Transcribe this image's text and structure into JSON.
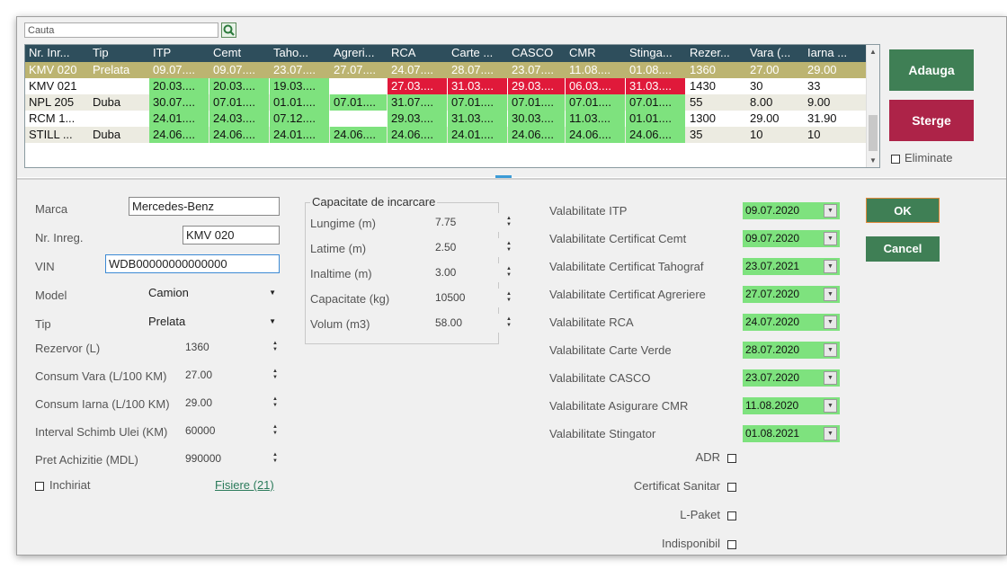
{
  "search": {
    "placeholder": "Cauta",
    "icon": "search-icon"
  },
  "grid": {
    "columns": [
      "Nr. Inr...",
      "Tip",
      "ITP",
      "Cemt",
      "Taho...",
      "Agreri...",
      "RCA",
      "Carte ...",
      "CASCO",
      "CMR",
      "Stinga...",
      "Rezer...",
      "Vara (...",
      "Iarna ..."
    ],
    "rows": [
      [
        "KMV 020",
        "Prelata",
        "09.07....",
        "09.07....",
        "23.07....",
        "27.07....",
        "24.07....",
        "28.07....",
        "23.07....",
        "11.08....",
        "01.08....",
        "1360",
        "27.00",
        "29.00"
      ],
      [
        "KMV 021",
        "",
        "20.03....",
        "20.03....",
        "19.03....",
        "",
        "27.03....",
        "31.03....",
        "29.03....",
        "06.03....",
        "31.03....",
        "1430",
        "30",
        "33"
      ],
      [
        "NPL 205",
        "Duba",
        "30.07....",
        "07.01....",
        "01.01....",
        "07.01....",
        "31.07....",
        "07.01....",
        "07.01....",
        "07.01....",
        "07.01....",
        "55",
        "8.00",
        "9.00"
      ],
      [
        "RCM 1...",
        "",
        "24.01....",
        "24.03....",
        "07.12....",
        "",
        "29.03....",
        "31.03....",
        "30.03....",
        "11.03....",
        "01.01....",
        "1300",
        "29.00",
        "31.90"
      ],
      [
        "STILL ...",
        "Duba",
        "24.06....",
        "24.06....",
        "24.01....",
        "24.06....",
        "24.06....",
        "24.01....",
        "24.06....",
        "24.06....",
        "24.06....",
        "35",
        "10",
        "10"
      ]
    ]
  },
  "actions": {
    "add_label": "Adauga",
    "delete_label": "Sterge",
    "eliminate_label": "Eliminate"
  },
  "form": {
    "marca_label": "Marca",
    "marca_value": "Mercedes-Benz",
    "nr_label": "Nr. Inreg.",
    "nr_value": "KMV 020",
    "vin_label": "VIN",
    "vin_value": "WDB00000000000000",
    "model_label": "Model",
    "model_value": "Camion",
    "tip_label": "Tip",
    "tip_value": "Prelata",
    "rezervor_label": "Rezervor (L)",
    "rezervor_value": "1360",
    "vara_label": "Consum Vara (L/100 KM)",
    "vara_value": "27.00",
    "iarna_label": "Consum Iarna (L/100 KM)",
    "iarna_value": "29.00",
    "ulei_label": "Interval Schimb Ulei (KM)",
    "ulei_value": "60000",
    "pret_label": "Pret Achizitie (MDL)",
    "pret_value": "990000",
    "inchiriat_label": "Inchiriat",
    "fisiere_link": "Fisiere (21)"
  },
  "capacity": {
    "title": "Capacitate de incarcare",
    "lungime_label": "Lungime (m)",
    "lungime_value": "7.75",
    "latime_label": "Latime (m)",
    "latime_value": "2.50",
    "inaltime_label": "Inaltime (m)",
    "inaltime_value": "3.00",
    "cap_label": "Capacitate (kg)",
    "cap_value": "10500",
    "volum_label": "Volum (m3)",
    "volum_value": "58.00"
  },
  "validity": [
    {
      "label": "Valabilitate ITP",
      "date": "09.07.2020"
    },
    {
      "label": "Valabilitate Certificat Cemt",
      "date": "09.07.2020"
    },
    {
      "label": "Valabilitate Certificat Tahograf",
      "date": "23.07.2021"
    },
    {
      "label": "Valabilitate Certificat Agreriere",
      "date": "27.07.2020"
    },
    {
      "label": "Valabilitate RCA",
      "date": "24.07.2020"
    },
    {
      "label": "Valabilitate Carte Verde",
      "date": "28.07.2020"
    },
    {
      "label": "Valabilitate CASCO",
      "date": "23.07.2020"
    },
    {
      "label": "Valabilitate Asigurare CMR",
      "date": "11.08.2020"
    },
    {
      "label": "Valabilitate Stingator",
      "date": "01.08.2021"
    }
  ],
  "flags": {
    "adr": "ADR",
    "sanitar": "Certificat Sanitar",
    "lpaket": "L-Paket",
    "indisponibil": "Indisponibil"
  },
  "dialog": {
    "ok_label": "OK",
    "cancel_label": "Cancel"
  },
  "colors": {
    "header": "#2e4e5c",
    "selected": "#bcb471",
    "valid": "#7ee27e",
    "expired": "#e0193a",
    "add": "#3f7f55",
    "delete": "#ad2348"
  }
}
